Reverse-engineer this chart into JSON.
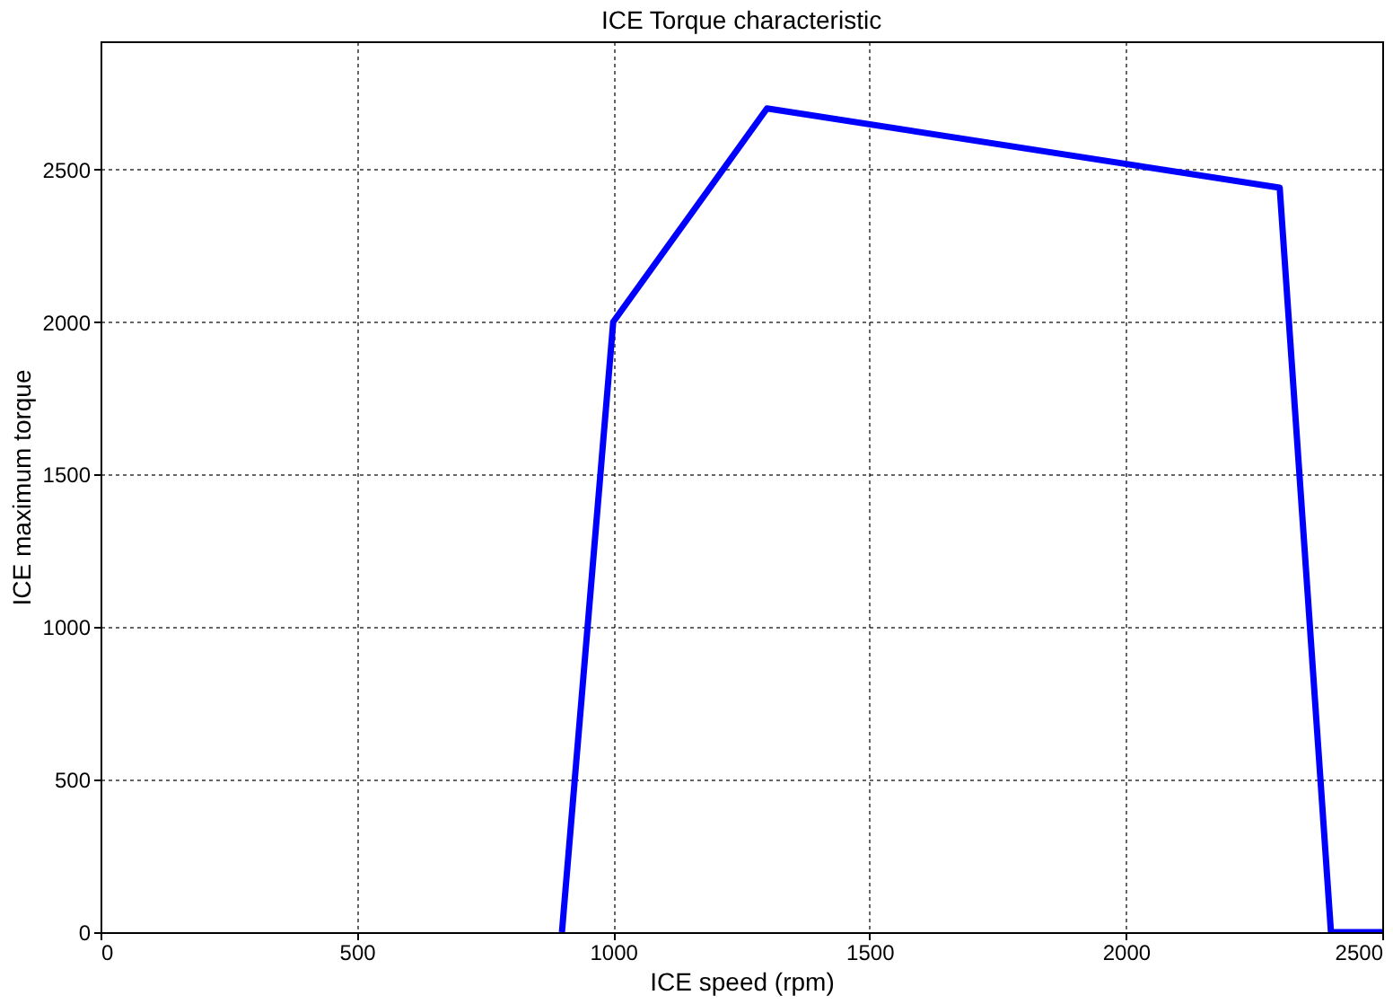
{
  "chart_data": {
    "type": "line",
    "title": "ICE Torque characteristic",
    "xlabel": "ICE speed (rpm)",
    "ylabel": "ICE maximum torque",
    "x": [
      900,
      1000,
      1300,
      2300,
      2400,
      2500
    ],
    "series": [
      {
        "color": "#0000ff",
        "values": [
          0,
          2000,
          2700,
          2440,
          0,
          0
        ]
      }
    ],
    "xlim": [
      0,
      2500
    ],
    "xticks": [
      0,
      500,
      1000,
      1500,
      2000,
      2500
    ],
    "ylim": [
      0,
      2920
    ],
    "yticks": [
      0,
      500,
      1000,
      1500,
      2000,
      2500
    ],
    "grid": true,
    "marker": "none",
    "line_style": "solid"
  }
}
